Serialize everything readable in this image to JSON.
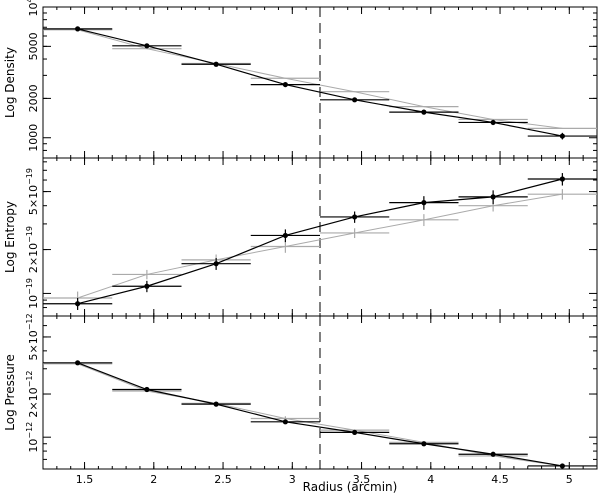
{
  "chart_data": {
    "type": "line",
    "xlabel": "Radius (arcmin)",
    "x_ticks": [
      1.5,
      2,
      2.5,
      3,
      3.5,
      4,
      4.5,
      5
    ],
    "x_tick_labels": [
      "1.5",
      "2",
      "2.5",
      "3",
      "3.5",
      "4",
      "4.5",
      "5"
    ],
    "xlim": [
      1.2,
      5.2
    ],
    "vline_x": 3.2,
    "colors": {
      "black_series": "#000000",
      "grey_series": "#aaaaaa"
    },
    "panels": [
      {
        "ylabel": "Log Density",
        "yscale": "log",
        "ylim": [
          700,
          10000
        ],
        "y_ticks": [
          1000,
          2000,
          5000,
          10000
        ],
        "y_tick_labels": [
          {
            "base": "1000",
            "exp": ""
          },
          {
            "base": "2000",
            "exp": ""
          },
          {
            "base": "5000",
            "exp": ""
          },
          {
            "base": "10",
            "exp": "4"
          }
        ],
        "series": [
          {
            "color": "#000000",
            "x": [
              1.45,
              1.95,
              2.45,
              2.95,
              3.45,
              3.95,
              4.45,
              4.95
            ],
            "y": [
              6800,
              5050,
              3650,
              2550,
              1950,
              1570,
              1310,
              1030
            ],
            "xerr": [
              0.25,
              0.25,
              0.25,
              0.25,
              0.25,
              0.25,
              0.25,
              0.25
            ],
            "yerr": [
              120,
              100,
              80,
              60,
              60,
              60,
              60,
              60
            ]
          },
          {
            "color": "#aaaaaa",
            "x": [
              1.45,
              1.95,
              2.45,
              2.95,
              3.45,
              3.95,
              4.45,
              4.95
            ],
            "y": [
              6700,
              4800,
              3700,
              2850,
              2250,
              1730,
              1380,
              1180
            ],
            "xerr": [
              0.25,
              0.25,
              0.25,
              0.25,
              0.25,
              0.25,
              0.25,
              0.25
            ],
            "yerr": [
              0,
              0,
              0,
              0,
              0,
              0,
              0,
              0
            ]
          }
        ]
      },
      {
        "ylabel": "Log Entropy",
        "yscale": "log",
        "ylim": [
          7e-20,
          8.5e-19
        ],
        "y_ticks": [
          1e-19,
          2e-19,
          5e-19
        ],
        "y_tick_labels": [
          {
            "base": "10",
            "exp": "−19"
          },
          {
            "base": "2×10",
            "exp": "−19"
          },
          {
            "base": "5×10",
            "exp": "−19"
          }
        ],
        "series": [
          {
            "color": "#000000",
            "x": [
              1.45,
              1.95,
              2.45,
              2.95,
              3.45,
              3.95,
              4.45,
              4.95
            ],
            "y": [
              8.5e-20,
              1.12e-19,
              1.6e-19,
              2.5e-19,
              3.35e-19,
              4.2e-19,
              4.6e-19,
              6.1e-19
            ],
            "xerr": [
              0.25,
              0.25,
              0.25,
              0.25,
              0.25,
              0.25,
              0.25,
              0.25
            ],
            "yerr": [
              8e-21,
              1e-20,
              1.5e-20,
              2.5e-20,
              3e-20,
              4.5e-20,
              5e-20,
              6e-20
            ]
          },
          {
            "color": "#aaaaaa",
            "x": [
              1.45,
              1.95,
              2.45,
              2.95,
              3.45,
              3.95,
              4.45,
              4.95
            ],
            "y": [
              9.3e-20,
              1.35e-19,
              1.7e-19,
              2.1e-19,
              2.6e-19,
              3.2e-19,
              4e-19,
              4.8e-19
            ],
            "xerr": [
              0.25,
              0.25,
              0.25,
              0.25,
              0.25,
              0.25,
              0.25,
              0.25
            ],
            "yerr": [
              1e-20,
              1e-20,
              1.5e-20,
              2e-20,
              2e-20,
              3e-20,
              3.5e-20,
              4e-20
            ]
          }
        ]
      },
      {
        "ylabel": "Log Pressure",
        "yscale": "log",
        "ylim": [
          6e-13,
          7e-12
        ],
        "y_ticks": [
          1e-12,
          2e-12,
          5e-12
        ],
        "y_tick_labels": [
          {
            "base": "10",
            "exp": "−12"
          },
          {
            "base": "2×10",
            "exp": "−12"
          },
          {
            "base": "5×10",
            "exp": "−12"
          }
        ],
        "series": [
          {
            "color": "#000000",
            "x": [
              1.45,
              1.95,
              2.45,
              2.95,
              3.45,
              3.95,
              4.45,
              4.95
            ],
            "y": [
              3.3e-12,
              2.15e-12,
              1.7e-12,
              1.28e-12,
              1.08e-12,
              9e-13,
              7.6e-13,
              6.3e-13
            ],
            "xerr": [
              0.25,
              0.25,
              0.25,
              0.25,
              0.25,
              0.25,
              0.25,
              0.25
            ],
            "yerr": [
              5e-14,
              4e-14,
              3e-14,
              3e-14,
              3e-14,
              3e-14,
              2e-14,
              2e-14
            ]
          },
          {
            "color": "#aaaaaa",
            "x": [
              1.45,
              1.95,
              2.45,
              2.95,
              3.45,
              3.95,
              4.45,
              4.95
            ],
            "y": [
              3.25e-12,
              2.1e-12,
              1.72e-12,
              1.35e-12,
              1.12e-12,
              9.2e-13,
              7.4e-13,
              6.3e-13
            ],
            "xerr": [
              0.25,
              0.25,
              0.25,
              0.25,
              0.25,
              0.25,
              0.25,
              0.25
            ],
            "yerr": [
              0,
              0,
              0,
              5e-14,
              0,
              0,
              0,
              0
            ]
          }
        ]
      }
    ]
  }
}
